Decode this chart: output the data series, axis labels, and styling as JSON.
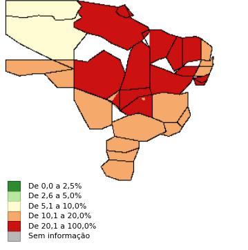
{
  "legend_items": [
    {
      "label": "De 0,0 a 2,5%",
      "color": "#2e8b2e",
      "edge": "#1a5c1a"
    },
    {
      "label": "De 2,6 a 5,0%",
      "color": "#b8e8a0",
      "edge": "#7ab870"
    },
    {
      "label": "De 5,1 a 10,0%",
      "color": "#fffcd4",
      "edge": "#c8c890"
    },
    {
      "label": "De 10,1 a 20,0%",
      "color": "#f5a96a",
      "edge": "#c07840"
    },
    {
      "label": "De 20,1 a 100,0%",
      "color": "#cc1111",
      "edge": "#8a0000"
    },
    {
      "label": "Sem informação",
      "color": "#b8b8b8",
      "edge": "#888888"
    }
  ],
  "background_color": "#ffffff",
  "figsize": [
    3.59,
    3.62
  ],
  "dpi": 100,
  "legend_fontsize": 7.8,
  "lon_min": -74.0,
  "lon_max": -28.5,
  "lat_min": -33.8,
  "lat_max": 5.4,
  "state_colors": {
    "RR": "#fffcd4",
    "AP": "#cc1111",
    "PA": "#cc1111",
    "AM": "#fffcd4",
    "AC": "#f5a96a",
    "RO": "#f5a96a",
    "MT": "#cc1111",
    "TO": "#cc1111",
    "MA": "#cc1111",
    "PI": "#cc1111",
    "CE": "#cc1111",
    "RN": "#f5a96a",
    "PB": "#f5a96a",
    "PE": "#f5a96a",
    "AL": "#cc1111",
    "SE": "#cc1111",
    "BA": "#cc1111",
    "MG": "#f5a96a",
    "ES": "#f5a96a",
    "RJ": "#f5a96a",
    "SP": "#f5a96a",
    "PR": "#f5a96a",
    "SC": "#f5a96a",
    "RS": "#f5a96a",
    "MS": "#f5a96a",
    "GO": "#cc1111",
    "DF": "#f5a96a"
  }
}
